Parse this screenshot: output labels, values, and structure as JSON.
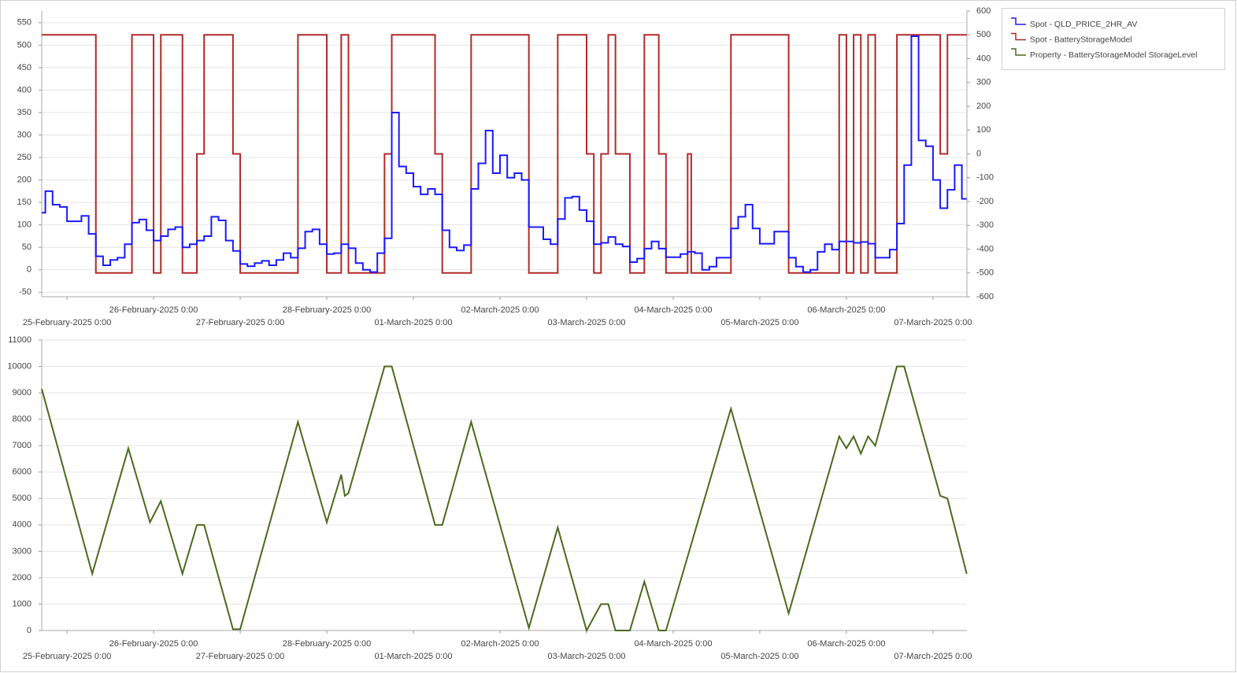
{
  "chart_data": [
    {
      "type": "line",
      "step": true,
      "grid": true,
      "legend": "right",
      "xlim": [
        "2025-02-24T17:00",
        "2025-03-07T09:24"
      ],
      "xticks": [
        {
          "value": "2025-02-25T00:00",
          "label": "25-February-2025 0:00"
        },
        {
          "value": "2025-02-26T00:00",
          "label": "26-February-2025 0:00"
        },
        {
          "value": "2025-02-27T00:00",
          "label": "27-February-2025 0:00"
        },
        {
          "value": "2025-02-28T00:00",
          "label": "28-February-2025 0:00"
        },
        {
          "value": "2025-03-01T00:00",
          "label": "01-March-2025 0:00"
        },
        {
          "value": "2025-03-02T00:00",
          "label": "02-March-2025 0:00"
        },
        {
          "value": "2025-03-03T00:00",
          "label": "03-March-2025 0:00"
        },
        {
          "value": "2025-03-04T00:00",
          "label": "04-March-2025 0:00"
        },
        {
          "value": "2025-03-05T00:00",
          "label": "05-March-2025 0:00"
        },
        {
          "value": "2025-03-06T00:00",
          "label": "06-March-2025 0:00"
        },
        {
          "value": "2025-03-07T00:00",
          "label": "07-March-2025 0:00"
        }
      ],
      "ylim": [
        -60,
        576
      ],
      "yticks": [
        -50,
        0,
        50,
        100,
        150,
        200,
        250,
        300,
        350,
        400,
        450,
        500,
        550
      ],
      "y2lim": [
        -600,
        600
      ],
      "y2ticks": [
        -600,
        -500,
        -400,
        -300,
        -200,
        -100,
        0,
        100,
        200,
        300,
        400,
        500,
        600
      ],
      "series": [
        {
          "name": "Spot - QLD_PRICE_2HR_AV",
          "color": "#1a1aff",
          "axis": "y",
          "x": [
            "2025-02-24T17:00",
            "2025-02-24T18:00",
            "2025-02-24T20:00",
            "2025-02-24T22:00",
            "2025-02-25T00:00",
            "2025-02-25T04:00",
            "2025-02-25T06:00",
            "2025-02-25T08:00",
            "2025-02-25T10:00",
            "2025-02-25T12:00",
            "2025-02-25T14:00",
            "2025-02-25T16:00",
            "2025-02-25T18:00",
            "2025-02-25T20:00",
            "2025-02-25T22:00",
            "2025-02-26T00:00",
            "2025-02-26T02:00",
            "2025-02-26T04:00",
            "2025-02-26T06:00",
            "2025-02-26T08:00",
            "2025-02-26T10:00",
            "2025-02-26T12:00",
            "2025-02-26T14:00",
            "2025-02-26T16:00",
            "2025-02-26T18:00",
            "2025-02-26T20:00",
            "2025-02-26T22:00",
            "2025-02-27T00:00",
            "2025-02-27T02:00",
            "2025-02-27T04:00",
            "2025-02-27T06:00",
            "2025-02-27T08:00",
            "2025-02-27T10:00",
            "2025-02-27T12:00",
            "2025-02-27T14:00",
            "2025-02-27T16:00",
            "2025-02-27T18:00",
            "2025-02-27T20:00",
            "2025-02-27T22:00",
            "2025-02-28T00:00",
            "2025-02-28T02:00",
            "2025-02-28T04:00",
            "2025-02-28T06:00",
            "2025-02-28T08:00",
            "2025-02-28T10:00",
            "2025-02-28T12:00",
            "2025-02-28T14:00",
            "2025-02-28T16:00",
            "2025-02-28T18:00",
            "2025-02-28T20:00",
            "2025-02-28T22:00",
            "2025-03-01T00:00",
            "2025-03-01T02:00",
            "2025-03-01T04:00",
            "2025-03-01T06:00",
            "2025-03-01T08:00",
            "2025-03-01T10:00",
            "2025-03-01T12:00",
            "2025-03-01T14:00",
            "2025-03-01T16:00",
            "2025-03-01T18:00",
            "2025-03-01T20:00",
            "2025-03-01T22:00",
            "2025-03-02T00:00",
            "2025-03-02T02:00",
            "2025-03-02T04:00",
            "2025-03-02T06:00",
            "2025-03-02T08:00",
            "2025-03-02T12:00",
            "2025-03-02T14:00",
            "2025-03-02T16:00",
            "2025-03-02T18:00",
            "2025-03-02T20:00",
            "2025-03-02T22:00",
            "2025-03-03T00:00",
            "2025-03-03T02:00",
            "2025-03-03T04:00",
            "2025-03-03T06:00",
            "2025-03-03T08:00",
            "2025-03-03T10:00",
            "2025-03-03T12:00",
            "2025-03-03T14:00",
            "2025-03-03T16:00",
            "2025-03-03T18:00",
            "2025-03-03T20:00",
            "2025-03-03T22:00",
            "2025-03-04T02:00",
            "2025-03-04T04:00",
            "2025-03-04T06:00",
            "2025-03-04T08:00",
            "2025-03-04T10:00",
            "2025-03-04T12:00",
            "2025-03-04T16:00",
            "2025-03-04T18:00",
            "2025-03-04T20:00",
            "2025-03-04T22:00",
            "2025-03-05T00:00",
            "2025-03-05T04:00",
            "2025-03-05T08:00",
            "2025-03-05T10:00",
            "2025-03-05T12:00",
            "2025-03-05T14:00",
            "2025-03-05T16:00",
            "2025-03-05T18:00",
            "2025-03-05T20:00",
            "2025-03-05T22:00",
            "2025-03-06T02:00",
            "2025-03-06T04:00",
            "2025-03-06T06:00",
            "2025-03-06T08:00",
            "2025-03-06T12:00",
            "2025-03-06T14:00",
            "2025-03-06T16:00",
            "2025-03-06T18:00",
            "2025-03-06T20:00",
            "2025-03-06T22:00",
            "2025-03-07T00:00",
            "2025-03-07T02:00",
            "2025-03-07T04:00",
            "2025-03-07T06:00",
            "2025-03-07T08:00",
            "2025-03-07T09:20"
          ],
          "values": [
            127,
            175,
            145,
            140,
            108,
            120,
            80,
            30,
            10,
            22,
            27,
            57,
            105,
            112,
            88,
            65,
            75,
            90,
            95,
            50,
            57,
            65,
            75,
            118,
            110,
            65,
            42,
            13,
            8,
            15,
            20,
            10,
            22,
            37,
            27,
            48,
            85,
            90,
            57,
            35,
            37,
            57,
            48,
            15,
            0,
            -5,
            37,
            70,
            350,
            230,
            215,
            185,
            168,
            180,
            168,
            88,
            50,
            43,
            55,
            180,
            237,
            310,
            215,
            255,
            205,
            215,
            200,
            95,
            68,
            57,
            113,
            160,
            163,
            133,
            108,
            57,
            60,
            73,
            57,
            52,
            17,
            25,
            47,
            63,
            47,
            28,
            35,
            40,
            37,
            0,
            7,
            27,
            92,
            118,
            145,
            92,
            58,
            85,
            27,
            7,
            -5,
            0,
            40,
            57,
            45,
            63,
            60,
            62,
            58,
            27,
            45,
            103,
            233,
            520,
            288,
            275,
            200,
            137,
            178,
            233,
            158,
            158
          ]
        },
        {
          "name": "Spot - BatteryStorageModel",
          "color": "#b22a2a",
          "axis": "y2",
          "x": [
            "2025-02-24T17:00",
            "2025-02-25T08:00",
            "2025-02-25T18:00",
            "2025-02-26T00:00",
            "2025-02-26T02:00",
            "2025-02-26T08:00",
            "2025-02-26T12:00",
            "2025-02-26T14:00",
            "2025-02-26T22:00",
            "2025-02-27T00:00",
            "2025-02-27T16:00",
            "2025-02-28T00:00",
            "2025-02-28T04:00",
            "2025-02-28T06:00",
            "2025-02-28T16:00",
            "2025-02-28T18:00",
            "2025-03-01T06:00",
            "2025-03-01T08:00",
            "2025-03-01T16:00",
            "2025-03-02T08:00",
            "2025-03-02T16:00",
            "2025-03-03T00:00",
            "2025-03-03T02:00",
            "2025-03-03T04:00",
            "2025-03-03T06:00",
            "2025-03-03T08:00",
            "2025-03-03T12:00",
            "2025-03-03T16:00",
            "2025-03-03T20:00",
            "2025-03-03T22:00",
            "2025-03-04T04:00",
            "2025-03-04T05:00",
            "2025-03-04T16:00",
            "2025-03-05T08:00",
            "2025-03-05T22:00",
            "2025-03-06T00:00",
            "2025-03-06T02:00",
            "2025-03-06T04:00",
            "2025-03-06T06:00",
            "2025-03-06T08:00",
            "2025-03-06T14:00",
            "2025-03-07T02:00",
            "2025-03-07T04:00",
            "2025-03-07T09:20"
          ],
          "values": [
            500,
            -500,
            500,
            -500,
            500,
            -500,
            0,
            500,
            0,
            -500,
            500,
            -500,
            500,
            -500,
            0,
            500,
            0,
            -500,
            500,
            -500,
            500,
            0,
            -500,
            0,
            500,
            0,
            -500,
            500,
            0,
            -500,
            0,
            -500,
            500,
            -500,
            500,
            -500,
            500,
            -500,
            500,
            -500,
            500,
            0,
            500,
            500
          ]
        }
      ]
    },
    {
      "type": "line",
      "grid": true,
      "xlim": [
        "2025-02-24T17:00",
        "2025-03-07T09:24"
      ],
      "xticks": [
        {
          "value": "2025-02-25T00:00",
          "label": "25-February-2025 0:00"
        },
        {
          "value": "2025-02-26T00:00",
          "label": "26-February-2025 0:00"
        },
        {
          "value": "2025-02-27T00:00",
          "label": "27-February-2025 0:00"
        },
        {
          "value": "2025-02-28T00:00",
          "label": "28-February-2025 0:00"
        },
        {
          "value": "2025-03-01T00:00",
          "label": "01-March-2025 0:00"
        },
        {
          "value": "2025-03-02T00:00",
          "label": "02-March-2025 0:00"
        },
        {
          "value": "2025-03-03T00:00",
          "label": "03-March-2025 0:00"
        },
        {
          "value": "2025-03-04T00:00",
          "label": "04-March-2025 0:00"
        },
        {
          "value": "2025-03-05T00:00",
          "label": "05-March-2025 0:00"
        },
        {
          "value": "2025-03-06T00:00",
          "label": "06-March-2025 0:00"
        },
        {
          "value": "2025-03-07T00:00",
          "label": "07-March-2025 0:00"
        }
      ],
      "ylim": [
        0,
        11000
      ],
      "yticks": [
        0,
        1000,
        2000,
        3000,
        4000,
        5000,
        6000,
        7000,
        8000,
        9000,
        10000,
        11000
      ],
      "series": [
        {
          "name": "Property - BatteryStorageModel StorageLevel",
          "color": "#4b6a1f",
          "axis": "y",
          "x": [
            "2025-02-24T17:00",
            "2025-02-25T07:00",
            "2025-02-25T17:00",
            "2025-02-25T23:00",
            "2025-02-26T02:00",
            "2025-02-26T08:00",
            "2025-02-26T12:00",
            "2025-02-26T14:00",
            "2025-02-26T22:00",
            "2025-02-27T00:00",
            "2025-02-27T16:00",
            "2025-02-28T00:00",
            "2025-02-28T04:00",
            "2025-02-28T05:00",
            "2025-02-28T06:00",
            "2025-02-28T16:00",
            "2025-02-28T18:00",
            "2025-03-01T06:00",
            "2025-03-01T08:00",
            "2025-03-01T16:00",
            "2025-03-02T08:00",
            "2025-03-02T16:00",
            "2025-03-03T00:00",
            "2025-03-03T04:00",
            "2025-03-03T06:00",
            "2025-03-03T08:00",
            "2025-03-03T12:00",
            "2025-03-03T16:00",
            "2025-03-03T20:00",
            "2025-03-03T22:00",
            "2025-03-04T16:00",
            "2025-03-05T08:00",
            "2025-03-05T22:00",
            "2025-03-06T00:00",
            "2025-03-06T02:00",
            "2025-03-06T04:00",
            "2025-03-06T06:00",
            "2025-03-06T08:00",
            "2025-03-06T14:00",
            "2025-03-06T16:00",
            "2025-03-07T02:00",
            "2025-03-07T04:00",
            "2025-03-07T09:20"
          ],
          "values": [
            9150,
            2150,
            6900,
            4100,
            4900,
            2150,
            4000,
            4000,
            50,
            50,
            7900,
            4100,
            5900,
            5100,
            5200,
            10000,
            10000,
            4000,
            4000,
            7900,
            100,
            3900,
            0,
            1000,
            1000,
            0,
            0,
            1850,
            0,
            0,
            8400,
            650,
            7350,
            6900,
            7350,
            6700,
            7350,
            7000,
            10000,
            10000,
            5100,
            5000,
            2150
          ]
        }
      ]
    }
  ]
}
